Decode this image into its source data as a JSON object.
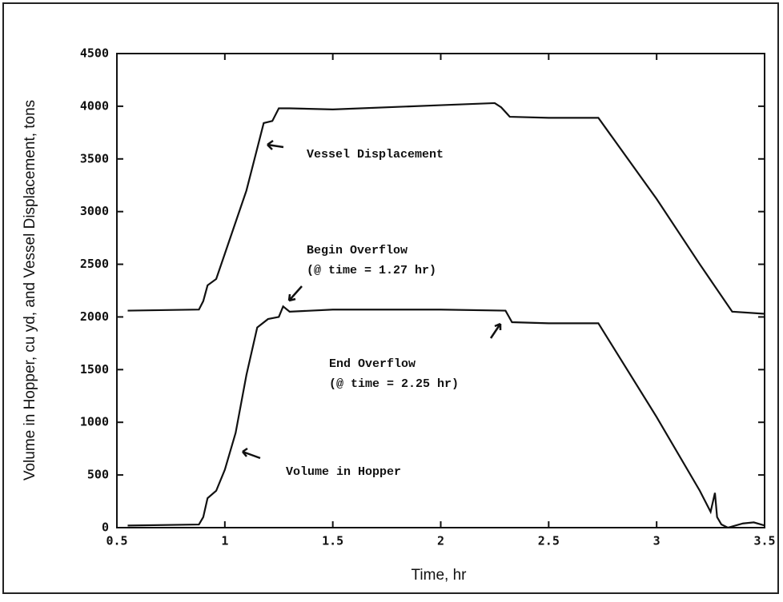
{
  "chart_data": {
    "type": "line",
    "xlabel": "Time, hr",
    "ylabel": "Volume in Hopper, cu yd, and Vessel Displacement, tons",
    "xlim": [
      0.5,
      3.5
    ],
    "xticks": [
      0.5,
      1,
      1.5,
      2,
      2.5,
      3,
      3.5
    ],
    "ylim": [
      0,
      4500
    ],
    "yticks": [
      0,
      500,
      1000,
      1500,
      2000,
      2500,
      3000,
      3500,
      4000,
      4500
    ],
    "annotations": [
      "Vessel Displacement",
      "Begin Overflow",
      "(@ time = 1.27 hr)",
      "End Overflow",
      "(@ time = 2.25 hr)",
      "Volume in Hopper"
    ],
    "series": [
      {
        "color": "#111111",
        "x": [
          0.55,
          0.88,
          0.9,
          0.92,
          0.96,
          1.0,
          1.1,
          1.15,
          1.18,
          1.22,
          1.25,
          1.3,
          1.5,
          2.0,
          2.25,
          2.28,
          2.32,
          2.5,
          2.73,
          3.0,
          3.2,
          3.35,
          3.5
        ],
        "values": [
          2060,
          2070,
          2150,
          2300,
          2360,
          2600,
          3200,
          3600,
          3840,
          3860,
          3980,
          3980,
          3970,
          4010,
          4030,
          3990,
          3900,
          3890,
          3890,
          3120,
          2500,
          2050,
          2030
        ]
      },
      {
        "color": "#111111",
        "x": [
          0.55,
          0.88,
          0.9,
          0.92,
          0.96,
          1.0,
          1.05,
          1.1,
          1.15,
          1.2,
          1.25,
          1.27,
          1.3,
          1.5,
          2.0,
          2.3,
          2.33,
          2.5,
          2.73,
          3.0,
          3.2,
          3.25,
          3.27,
          3.28,
          3.3,
          3.33,
          3.4,
          3.45,
          3.5
        ],
        "values": [
          20,
          30,
          100,
          280,
          350,
          550,
          900,
          1450,
          1900,
          1980,
          2000,
          2100,
          2050,
          2070,
          2070,
          2060,
          1950,
          1940,
          1940,
          1050,
          350,
          150,
          330,
          100,
          30,
          0,
          40,
          50,
          20
        ]
      }
    ]
  }
}
